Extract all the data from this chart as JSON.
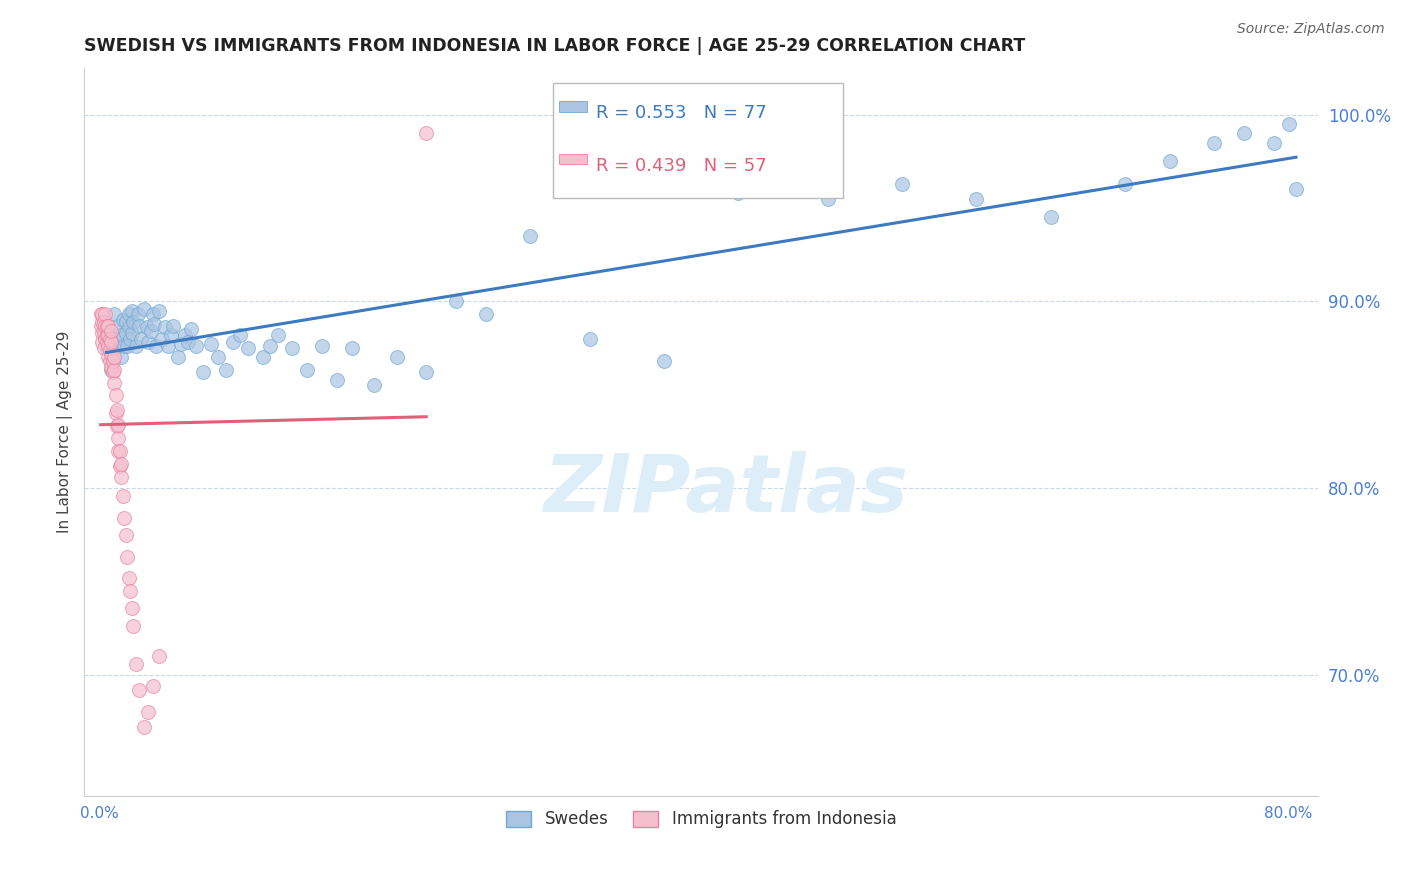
{
  "title": "SWEDISH VS IMMIGRANTS FROM INDONESIA IN LABOR FORCE | AGE 25-29 CORRELATION CHART",
  "source": "Source: ZipAtlas.com",
  "ylabel": "In Labor Force | Age 25-29",
  "xlim": [
    -0.01,
    0.82
  ],
  "ylim": [
    0.635,
    1.025
  ],
  "xtick_vals": [
    0.0,
    0.1,
    0.2,
    0.3,
    0.4,
    0.5,
    0.6,
    0.7,
    0.8
  ],
  "xticklabels": [
    "0.0%",
    "",
    "",
    "",
    "",
    "",
    "",
    "",
    "80.0%"
  ],
  "ytick_right_vals": [
    0.7,
    0.8,
    0.9,
    1.0
  ],
  "ytick_right_labels": [
    "70.0%",
    "80.0%",
    "90.0%",
    "100.0%"
  ],
  "legend_blue_r": "R = 0.553",
  "legend_blue_n": "N = 77",
  "legend_pink_r": "R = 0.439",
  "legend_pink_n": "N = 57",
  "blue_color": "#aac4e2",
  "blue_edge": "#6fa8d4",
  "blue_line_color": "#3d7abf",
  "pink_color": "#f5bfce",
  "pink_edge": "#e8829f",
  "pink_line_color": "#e0607a",
  "label_color": "#4a7fd4",
  "tick_color": "#4a7fd4",
  "watermark_text": "ZIPatlas",
  "watermark_color": "#ddeef8",
  "swedes_label": "Swedes",
  "indonesia_label": "Immigrants from Indonesia",
  "blue_x": [
    0.005,
    0.008,
    0.01,
    0.01,
    0.012,
    0.013,
    0.015,
    0.015,
    0.016,
    0.017,
    0.018,
    0.018,
    0.019,
    0.02,
    0.02,
    0.021,
    0.022,
    0.022,
    0.023,
    0.025,
    0.026,
    0.027,
    0.028,
    0.03,
    0.032,
    0.033,
    0.035,
    0.036,
    0.037,
    0.038,
    0.04,
    0.042,
    0.044,
    0.046,
    0.048,
    0.05,
    0.053,
    0.055,
    0.058,
    0.06,
    0.062,
    0.065,
    0.07,
    0.075,
    0.08,
    0.085,
    0.09,
    0.095,
    0.1,
    0.11,
    0.115,
    0.12,
    0.13,
    0.14,
    0.15,
    0.16,
    0.17,
    0.185,
    0.2,
    0.22,
    0.24,
    0.26,
    0.29,
    0.33,
    0.38,
    0.43,
    0.49,
    0.54,
    0.59,
    0.64,
    0.69,
    0.72,
    0.75,
    0.77,
    0.79,
    0.8,
    0.805
  ],
  "blue_y": [
    0.875,
    0.863,
    0.88,
    0.893,
    0.887,
    0.876,
    0.87,
    0.882,
    0.89,
    0.876,
    0.883,
    0.889,
    0.876,
    0.893,
    0.886,
    0.88,
    0.883,
    0.895,
    0.889,
    0.876,
    0.893,
    0.887,
    0.88,
    0.896,
    0.886,
    0.878,
    0.884,
    0.893,
    0.888,
    0.876,
    0.895,
    0.88,
    0.886,
    0.876,
    0.882,
    0.887,
    0.87,
    0.877,
    0.882,
    0.878,
    0.885,
    0.876,
    0.862,
    0.877,
    0.87,
    0.863,
    0.878,
    0.882,
    0.875,
    0.87,
    0.876,
    0.882,
    0.875,
    0.863,
    0.876,
    0.858,
    0.875,
    0.855,
    0.87,
    0.862,
    0.9,
    0.893,
    0.935,
    0.88,
    0.868,
    0.958,
    0.955,
    0.963,
    0.955,
    0.945,
    0.963,
    0.975,
    0.985,
    0.99,
    0.985,
    0.995,
    0.96
  ],
  "pink_x": [
    0.001,
    0.001,
    0.002,
    0.002,
    0.002,
    0.002,
    0.003,
    0.003,
    0.003,
    0.004,
    0.004,
    0.004,
    0.005,
    0.005,
    0.005,
    0.006,
    0.006,
    0.006,
    0.006,
    0.007,
    0.007,
    0.007,
    0.008,
    0.008,
    0.008,
    0.008,
    0.009,
    0.009,
    0.01,
    0.01,
    0.01,
    0.011,
    0.011,
    0.012,
    0.012,
    0.013,
    0.013,
    0.013,
    0.014,
    0.014,
    0.015,
    0.015,
    0.016,
    0.017,
    0.018,
    0.019,
    0.02,
    0.021,
    0.022,
    0.023,
    0.025,
    0.027,
    0.03,
    0.033,
    0.036,
    0.04,
    0.22
  ],
  "pink_y": [
    0.893,
    0.887,
    0.883,
    0.889,
    0.893,
    0.878,
    0.883,
    0.889,
    0.875,
    0.88,
    0.887,
    0.893,
    0.878,
    0.882,
    0.887,
    0.87,
    0.876,
    0.882,
    0.887,
    0.868,
    0.874,
    0.88,
    0.865,
    0.872,
    0.878,
    0.884,
    0.862,
    0.868,
    0.856,
    0.863,
    0.87,
    0.84,
    0.85,
    0.833,
    0.842,
    0.82,
    0.827,
    0.834,
    0.812,
    0.82,
    0.806,
    0.813,
    0.796,
    0.784,
    0.775,
    0.763,
    0.752,
    0.745,
    0.736,
    0.726,
    0.706,
    0.692,
    0.672,
    0.68,
    0.694,
    0.71,
    0.99
  ],
  "marker_size": 100,
  "marker_alpha": 0.7,
  "grid_color": "#c8d8e8",
  "grid_style": "--",
  "grid_linewidth": 0.8
}
